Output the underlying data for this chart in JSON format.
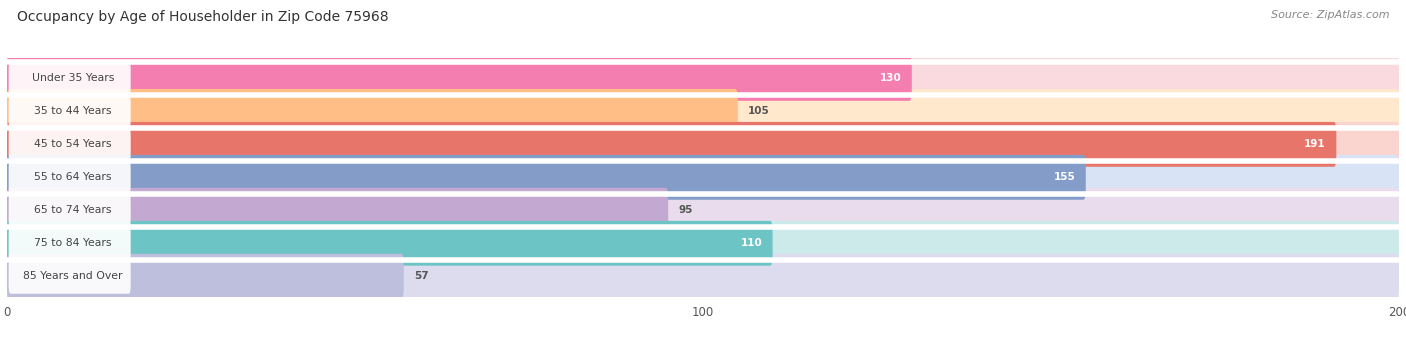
{
  "title": "Occupancy by Age of Householder in Zip Code 75968",
  "source": "Source: ZipAtlas.com",
  "categories": [
    "Under 35 Years",
    "35 to 44 Years",
    "45 to 54 Years",
    "55 to 64 Years",
    "65 to 74 Years",
    "75 to 84 Years",
    "85 Years and Over"
  ],
  "values": [
    130,
    105,
    191,
    155,
    95,
    110,
    57
  ],
  "bar_colors": [
    "#F47EB0",
    "#FFBE85",
    "#E8756A",
    "#849DC8",
    "#C3A8D1",
    "#6DC4C4",
    "#BEBEDD"
  ],
  "bar_bg_colors": [
    "#FADADF",
    "#FFE8CC",
    "#FAD4CE",
    "#D8E4F5",
    "#E8DCED",
    "#CDEAEA",
    "#DCDCEE"
  ],
  "xlim": [
    0,
    200
  ],
  "xticks": [
    0,
    100,
    200
  ],
  "bg_color": "#FFFFFF",
  "plot_bg": "#F0F0F0",
  "title_fontsize": 10,
  "source_fontsize": 8,
  "bar_height": 0.68,
  "gap_color": "#FFFFFF"
}
